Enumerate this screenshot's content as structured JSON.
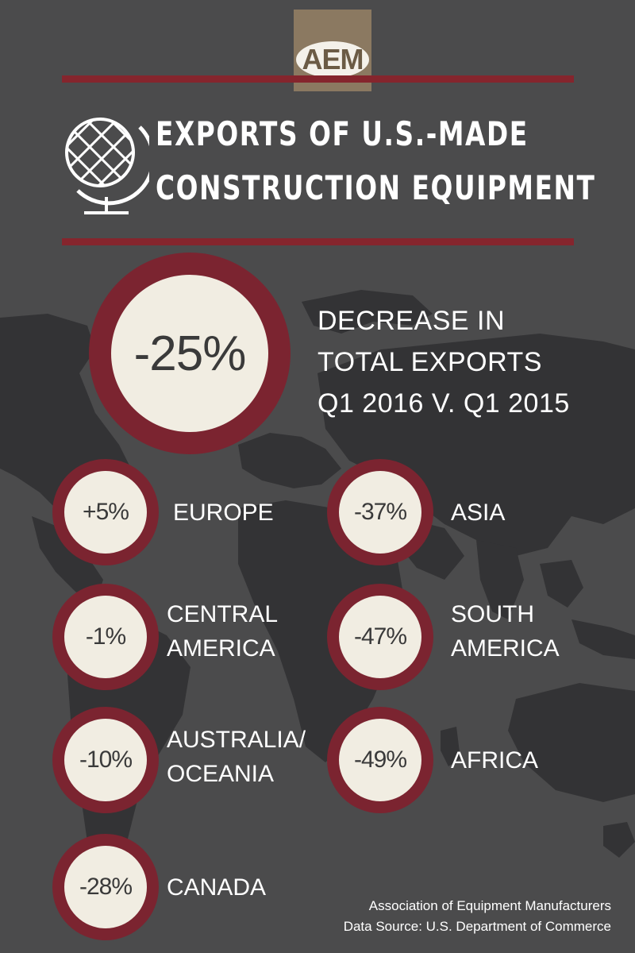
{
  "logo": {
    "text": "AEM"
  },
  "title": {
    "line1": "EXPORTS OF U.S.-MADE",
    "line2": "CONSTRUCTION EQUIPMENT"
  },
  "icons": {
    "title_icon": "globe-icon"
  },
  "colors": {
    "background": "#4b4b4c",
    "map": "#333335",
    "ring": "#7b2430",
    "rule": "#85252d",
    "circle_fill": "#f1ede2",
    "logo_box": "#8b7961"
  },
  "headline": {
    "value": "-25%",
    "text": "DECREASE IN\nTOTAL EXPORTS\nQ1 2016 V. Q1 2015"
  },
  "regions": [
    {
      "value": "+5%",
      "label": "EUROPE"
    },
    {
      "value": "-37%",
      "label": "ASIA"
    },
    {
      "value": "-1%",
      "label": "CENTRAL\nAMERICA"
    },
    {
      "value": "-47%",
      "label": "SOUTH\nAMERICA"
    },
    {
      "value": "-10%",
      "label": "AUSTRALIA/\nOCEANIA"
    },
    {
      "value": "-49%",
      "label": "AFRICA"
    },
    {
      "value": "-28%",
      "label": "CANADA"
    }
  ],
  "footer": {
    "line1": "Association of Equipment Manufacturers",
    "line2": "Data Source: U.S. Department of Commerce"
  }
}
